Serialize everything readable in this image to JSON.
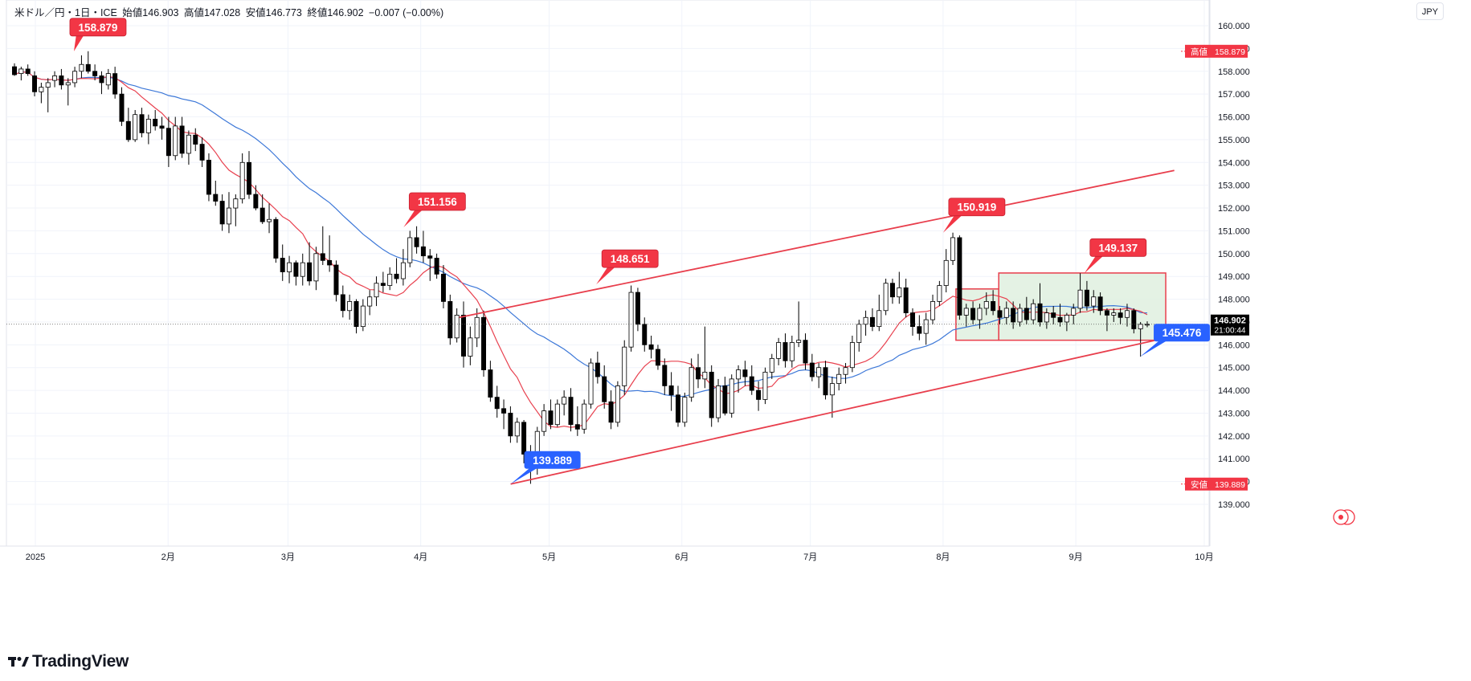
{
  "header": {
    "symbol": "米ドル／円・1日・ICE",
    "open_label": "始値",
    "open_value": "146.903",
    "high_label": "高値",
    "high_value": "147.028",
    "low_label": "安値",
    "low_value": "146.773",
    "close_label": "終値",
    "close_value": "146.902",
    "change": "−0.007 (−0.00%)"
  },
  "currency": "JPY",
  "brand": "TradingView",
  "colors": {
    "up_candle": "#ffffff",
    "down_candle": "#000000",
    "ma_short": "#e8414f",
    "ma_long": "#3d78d8",
    "trendline": "#e83e4c",
    "range_fill": "#dff0df",
    "label_red": "#f23645",
    "label_blue": "#2962ff"
  },
  "chart_data": {
    "type": "candlestick",
    "y_axis_ticks": [
      "160.000",
      "159.000",
      "158.000",
      "157.000",
      "156.000",
      "155.000",
      "154.000",
      "153.000",
      "152.000",
      "151.000",
      "150.000",
      "149.000",
      "148.000",
      "147.000",
      "146.000",
      "145.000",
      "144.000",
      "143.000",
      "142.000",
      "141.000",
      "140.000",
      "139.000"
    ],
    "x_axis_ticks": [
      "2025",
      "2月",
      "3月",
      "4月",
      "5月",
      "6月",
      "7月",
      "8月",
      "9月",
      "10月"
    ],
    "ylim": [
      138.3,
      160.3
    ],
    "y_axis_side": "right",
    "current_price": "146.902",
    "countdown": "21:00:44",
    "high_marker": {
      "label": "高値",
      "value": "158.879"
    },
    "low_marker": {
      "label": "安値",
      "value": "139.889"
    },
    "callouts": [
      {
        "text": "158.879",
        "color": "red",
        "date": "2025-01-10",
        "value": 158.879
      },
      {
        "text": "151.156",
        "color": "red",
        "date": "2025-03-28",
        "value": 151.156
      },
      {
        "text": "148.651",
        "color": "red",
        "date": "2025-05-12",
        "value": 148.651
      },
      {
        "text": "150.919",
        "color": "red",
        "date": "2025-08-01",
        "value": 150.919
      },
      {
        "text": "149.137",
        "color": "red",
        "date": "2025-09-03",
        "value": 149.137
      },
      {
        "text": "139.889",
        "color": "blue",
        "date": "2025-04-22",
        "value": 139.889
      },
      {
        "text": "145.476",
        "color": "blue",
        "date": "2025-09-16",
        "value": 145.476
      }
    ],
    "trendlines": [
      {
        "from": {
          "date": "2025-04-10",
          "value": 147.2
        },
        "to": {
          "date": "2025-09-24",
          "value": 153.65
        }
      },
      {
        "from": {
          "date": "2025-04-22",
          "value": 139.889
        },
        "to": {
          "date": "2025-09-22",
          "value": 146.3
        }
      }
    ],
    "range_boxes": [
      {
        "from": "2025-08-04",
        "to": "2025-08-14",
        "low": 146.2,
        "high": 148.45
      },
      {
        "from": "2025-08-14",
        "to": "2025-09-22",
        "low": 146.2,
        "high": 149.15
      }
    ],
    "candles": [
      [
        158.2,
        158.35,
        157.8,
        157.85
      ],
      [
        157.9,
        158.2,
        157.6,
        158.1
      ],
      [
        158.1,
        158.3,
        157.8,
        157.9
      ],
      [
        157.8,
        158.0,
        156.9,
        157.1
      ],
      [
        157.1,
        157.5,
        156.6,
        157.3
      ],
      [
        157.3,
        157.7,
        156.2,
        157.5
      ],
      [
        157.6,
        158.0,
        157.3,
        157.8
      ],
      [
        157.8,
        158.1,
        157.2,
        157.4
      ],
      [
        157.4,
        157.7,
        156.5,
        157.5
      ],
      [
        157.5,
        158.2,
        157.3,
        158.0
      ],
      [
        158.0,
        158.7,
        157.7,
        158.3
      ],
      [
        158.3,
        158.88,
        157.9,
        158.0
      ],
      [
        158.0,
        158.3,
        157.6,
        157.8
      ],
      [
        157.8,
        158.0,
        157.0,
        157.5
      ],
      [
        157.4,
        158.1,
        157.2,
        157.9
      ],
      [
        157.9,
        158.2,
        156.8,
        157.0
      ],
      [
        157.0,
        157.3,
        155.6,
        155.8
      ],
      [
        155.8,
        156.4,
        154.9,
        155.0
      ],
      [
        155.0,
        156.3,
        154.9,
        156.1
      ],
      [
        156.1,
        156.4,
        155.1,
        155.3
      ],
      [
        155.3,
        156.1,
        154.8,
        155.9
      ],
      [
        155.9,
        156.3,
        155.4,
        155.6
      ],
      [
        155.6,
        156.0,
        155.0,
        155.5
      ],
      [
        155.5,
        156.0,
        153.8,
        154.3
      ],
      [
        154.3,
        156.0,
        154.1,
        155.6
      ],
      [
        155.6,
        156.0,
        154.2,
        154.4
      ],
      [
        154.4,
        155.4,
        153.9,
        155.2
      ],
      [
        155.2,
        155.5,
        154.5,
        154.8
      ],
      [
        154.8,
        155.1,
        153.8,
        154.1
      ],
      [
        154.1,
        154.4,
        152.3,
        152.6
      ],
      [
        152.6,
        153.2,
        152.1,
        152.3
      ],
      [
        152.3,
        152.6,
        151.0,
        151.3
      ],
      [
        151.3,
        152.7,
        150.9,
        152.0
      ],
      [
        152.0,
        152.6,
        151.2,
        152.4
      ],
      [
        152.4,
        154.4,
        152.2,
        154.0
      ],
      [
        154.0,
        154.5,
        152.4,
        152.6
      ],
      [
        152.6,
        153.0,
        151.9,
        152.0
      ],
      [
        152.0,
        152.6,
        151.3,
        151.4
      ],
      [
        151.4,
        152.2,
        150.9,
        151.5
      ],
      [
        151.5,
        151.6,
        149.6,
        149.8
      ],
      [
        149.8,
        150.4,
        148.8,
        149.2
      ],
      [
        149.2,
        149.9,
        148.7,
        149.6
      ],
      [
        149.6,
        149.7,
        148.6,
        149.0
      ],
      [
        149.0,
        150.0,
        148.6,
        149.6
      ],
      [
        149.6,
        150.5,
        148.6,
        148.8
      ],
      [
        148.8,
        150.3,
        148.4,
        150.0
      ],
      [
        150.0,
        151.2,
        149.5,
        149.7
      ],
      [
        149.7,
        150.8,
        149.2,
        149.5
      ],
      [
        149.5,
        149.7,
        147.9,
        148.2
      ],
      [
        148.2,
        148.6,
        147.2,
        147.5
      ],
      [
        147.5,
        148.2,
        147.1,
        147.9
      ],
      [
        147.9,
        148.0,
        146.5,
        146.8
      ],
      [
        146.8,
        148.0,
        146.6,
        147.7
      ],
      [
        147.7,
        148.4,
        147.3,
        148.1
      ],
      [
        148.1,
        149.0,
        147.7,
        148.7
      ],
      [
        148.7,
        149.2,
        148.3,
        148.6
      ],
      [
        148.6,
        149.4,
        148.4,
        149.1
      ],
      [
        149.1,
        149.8,
        148.7,
        148.9
      ],
      [
        148.9,
        150.2,
        148.6,
        149.6
      ],
      [
        149.6,
        151.0,
        149.4,
        150.7
      ],
      [
        150.7,
        151.2,
        150.0,
        150.3
      ],
      [
        150.3,
        151.0,
        149.6,
        149.9
      ],
      [
        149.9,
        150.2,
        148.8,
        149.8
      ],
      [
        149.8,
        150.0,
        148.9,
        149.1
      ],
      [
        149.1,
        149.5,
        147.6,
        147.9
      ],
      [
        147.9,
        148.2,
        146.0,
        146.3
      ],
      [
        146.3,
        147.6,
        146.1,
        147.3
      ],
      [
        147.3,
        147.9,
        145.0,
        145.5
      ],
      [
        145.5,
        146.8,
        145.1,
        146.3
      ],
      [
        146.3,
        147.6,
        145.9,
        147.2
      ],
      [
        147.2,
        147.5,
        144.6,
        144.9
      ],
      [
        144.9,
        145.3,
        143.5,
        143.7
      ],
      [
        143.7,
        144.2,
        142.8,
        143.2
      ],
      [
        143.2,
        143.6,
        142.3,
        143.0
      ],
      [
        143.0,
        143.3,
        141.7,
        142.0
      ],
      [
        142.0,
        142.8,
        141.7,
        142.6
      ],
      [
        142.6,
        142.7,
        140.8,
        141.2
      ],
      [
        141.2,
        141.6,
        139.9,
        140.6
      ],
      [
        140.6,
        142.4,
        140.3,
        142.2
      ],
      [
        142.2,
        143.4,
        142.0,
        143.1
      ],
      [
        143.1,
        143.6,
        142.3,
        142.5
      ],
      [
        142.5,
        143.6,
        142.4,
        143.4
      ],
      [
        143.4,
        144.0,
        142.9,
        143.7
      ],
      [
        143.7,
        144.1,
        142.2,
        142.5
      ],
      [
        142.5,
        143.3,
        142.0,
        142.3
      ],
      [
        142.3,
        143.6,
        142.1,
        143.4
      ],
      [
        143.4,
        145.4,
        143.2,
        145.2
      ],
      [
        145.2,
        145.7,
        144.3,
        144.6
      ],
      [
        144.6,
        145.1,
        143.2,
        143.5
      ],
      [
        143.5,
        144.0,
        142.3,
        142.6
      ],
      [
        142.6,
        144.4,
        142.4,
        144.2
      ],
      [
        144.2,
        146.2,
        143.8,
        145.9
      ],
      [
        145.9,
        148.6,
        145.7,
        148.3
      ],
      [
        148.3,
        148.5,
        146.6,
        146.9
      ],
      [
        146.9,
        147.2,
        145.7,
        146.0
      ],
      [
        146.0,
        146.4,
        145.4,
        145.8
      ],
      [
        145.8,
        146.0,
        144.9,
        145.1
      ],
      [
        145.1,
        145.4,
        143.8,
        144.2
      ],
      [
        144.2,
        144.8,
        143.1,
        143.8
      ],
      [
        143.8,
        144.2,
        142.4,
        142.6
      ],
      [
        142.6,
        143.9,
        142.4,
        143.7
      ],
      [
        143.7,
        145.4,
        143.5,
        145.0
      ],
      [
        145.0,
        145.6,
        144.1,
        144.5
      ],
      [
        144.5,
        146.8,
        144.1,
        144.8
      ],
      [
        144.8,
        145.1,
        142.4,
        142.8
      ],
      [
        142.8,
        144.5,
        142.6,
        144.2
      ],
      [
        144.2,
        144.6,
        142.9,
        143.0
      ],
      [
        143.0,
        144.7,
        142.8,
        144.5
      ],
      [
        144.5,
        145.1,
        143.9,
        144.9
      ],
      [
        144.9,
        145.3,
        144.2,
        144.6
      ],
      [
        144.6,
        145.1,
        143.8,
        144.0
      ],
      [
        144.0,
        144.4,
        143.1,
        143.6
      ],
      [
        143.6,
        145.0,
        143.4,
        144.8
      ],
      [
        144.8,
        145.6,
        144.5,
        145.4
      ],
      [
        145.4,
        146.3,
        145.1,
        146.1
      ],
      [
        146.1,
        146.5,
        145.0,
        145.3
      ],
      [
        145.3,
        146.4,
        145.0,
        146.1
      ],
      [
        146.1,
        147.9,
        145.9,
        146.2
      ],
      [
        146.2,
        146.5,
        144.9,
        145.2
      ],
      [
        145.2,
        145.6,
        144.4,
        144.6
      ],
      [
        144.6,
        145.2,
        144.1,
        145.0
      ],
      [
        145.0,
        145.3,
        143.6,
        143.8
      ],
      [
        143.8,
        144.6,
        142.8,
        144.3
      ],
      [
        144.3,
        145.0,
        144.0,
        144.7
      ],
      [
        144.7,
        145.2,
        144.3,
        145.0
      ],
      [
        145.0,
        146.4,
        144.8,
        146.1
      ],
      [
        146.1,
        147.1,
        145.7,
        146.9
      ],
      [
        146.9,
        147.5,
        146.4,
        147.2
      ],
      [
        147.2,
        147.6,
        146.6,
        146.8
      ],
      [
        146.8,
        148.2,
        146.6,
        147.5
      ],
      [
        147.5,
        148.9,
        147.3,
        148.7
      ],
      [
        148.7,
        148.9,
        147.8,
        148.1
      ],
      [
        148.1,
        149.2,
        147.8,
        148.5
      ],
      [
        148.5,
        148.9,
        147.2,
        147.4
      ],
      [
        147.4,
        147.6,
        146.4,
        146.8
      ],
      [
        146.8,
        147.3,
        146.2,
        146.5
      ],
      [
        146.5,
        147.4,
        146.0,
        147.1
      ],
      [
        147.1,
        148.2,
        146.9,
        147.9
      ],
      [
        147.9,
        148.8,
        147.7,
        148.6
      ],
      [
        148.6,
        150.2,
        148.3,
        149.7
      ],
      [
        149.7,
        150.92,
        149.5,
        150.7
      ],
      [
        150.7,
        150.8,
        147.1,
        147.3
      ],
      [
        147.3,
        147.8,
        146.8,
        147.6
      ],
      [
        147.6,
        147.9,
        146.9,
        147.1
      ],
      [
        147.1,
        147.8,
        146.7,
        147.6
      ],
      [
        147.6,
        148.3,
        147.3,
        147.9
      ],
      [
        147.9,
        148.4,
        147.3,
        147.5
      ],
      [
        147.5,
        147.7,
        146.9,
        147.2
      ],
      [
        147.2,
        147.9,
        146.9,
        147.6
      ],
      [
        147.6,
        147.9,
        146.7,
        147.0
      ],
      [
        147.0,
        147.8,
        146.8,
        147.6
      ],
      [
        147.6,
        148.1,
        146.9,
        147.1
      ],
      [
        147.1,
        148.0,
        146.9,
        147.8
      ],
      [
        147.8,
        148.7,
        146.8,
        147.0
      ],
      [
        147.0,
        147.6,
        146.7,
        147.4
      ],
      [
        147.4,
        147.7,
        146.9,
        147.2
      ],
      [
        147.2,
        147.8,
        146.8,
        147.0
      ],
      [
        147.0,
        147.4,
        146.6,
        147.3
      ],
      [
        147.3,
        147.8,
        146.9,
        147.6
      ],
      [
        147.6,
        149.14,
        147.4,
        148.4
      ],
      [
        148.4,
        148.8,
        147.5,
        147.7
      ],
      [
        147.7,
        148.4,
        147.4,
        148.1
      ],
      [
        148.1,
        148.3,
        147.3,
        147.5
      ],
      [
        147.5,
        147.6,
        146.6,
        147.3
      ],
      [
        147.3,
        147.6,
        147.0,
        147.4
      ],
      [
        147.4,
        147.6,
        146.9,
        147.2
      ],
      [
        147.2,
        147.8,
        146.8,
        147.5
      ],
      [
        147.5,
        147.6,
        146.5,
        146.7
      ],
      [
        146.7,
        147.0,
        145.48,
        146.9
      ],
      [
        146.9,
        147.03,
        146.77,
        146.9
      ]
    ]
  }
}
